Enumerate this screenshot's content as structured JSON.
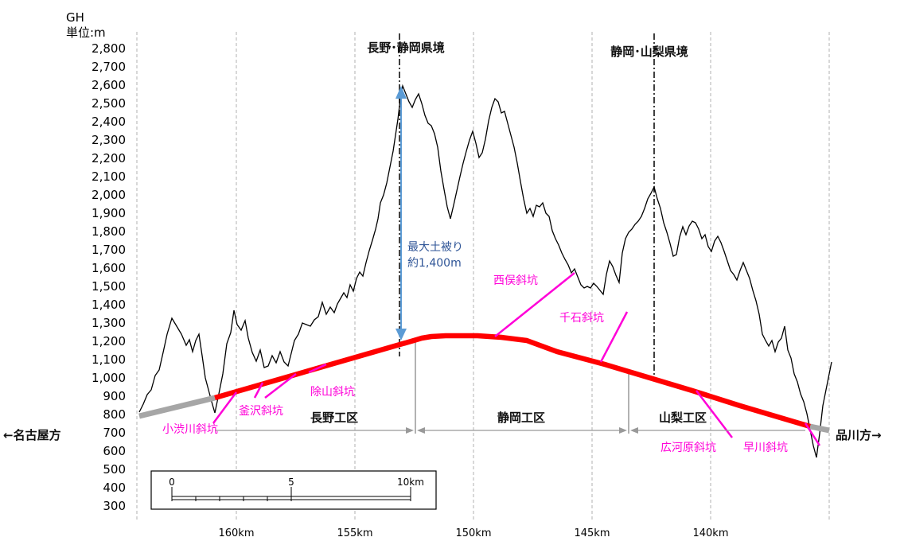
{
  "axis": {
    "title_line1": "GH",
    "title_line2": "単位:m",
    "y_ticks": [
      "2,800",
      "2,700",
      "2,600",
      "2,500",
      "2,400",
      "2,300",
      "2,200",
      "2,100",
      "2,000",
      "1,900",
      "1,800",
      "1,700",
      "1,600",
      "1,500",
      "1,400",
      "1,300",
      "1,200",
      "1,100",
      "1,000",
      "900",
      "800",
      "700",
      "600",
      "500",
      "400",
      "300"
    ],
    "x_ticks": [
      "160km",
      "155km",
      "150km",
      "145km",
      "140km"
    ]
  },
  "boundaries": {
    "nagano_shizuoka": "長野･静岡県境",
    "shizuoka_yamanashi": "静岡･山梨県境"
  },
  "directions": {
    "left": "←名古屋方",
    "right": "品川方→"
  },
  "sections": {
    "nagano": "長野工区",
    "shizuoka": "静岡工区",
    "yamanashi": "山梨工区"
  },
  "cover": {
    "line1": "最大土被り",
    "line2": "約1,400m"
  },
  "shafts": {
    "koshibukawa": "小渋川斜坑",
    "kamazawa": "釜沢斜坑",
    "jozan": "除山斜坑",
    "nishimata": "西俣斜坑",
    "sengoku": "千石斜坑",
    "hirogawara": "広河原斜坑",
    "hayakawa": "早川斜坑"
  },
  "scale_bar": {
    "t0": "0",
    "t5": "5",
    "t10": "10km"
  },
  "colors": {
    "tunnel": "#ff0000",
    "approach": "#a6a6a6",
    "shaft_label": "#ff00d8",
    "annotation_blue": "#2f5597",
    "arrow_blue": "#5b9bd5"
  }
}
